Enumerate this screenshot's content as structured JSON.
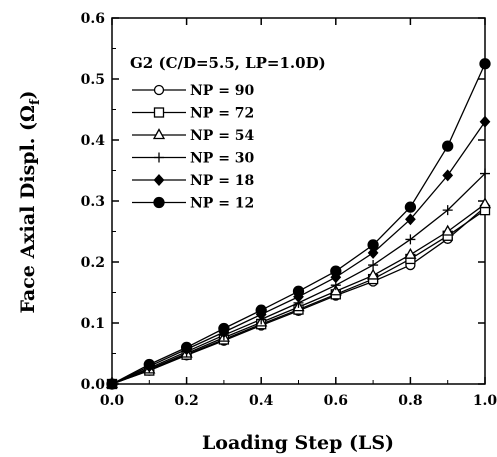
{
  "chart_data": {
    "type": "line",
    "xlabel": "Loading Step (LS)",
    "ylabel_prefix": "Face Axial Displ. (",
    "ylabel_symbol": "Ω",
    "ylabel_subscript": "f",
    "ylabel_suffix": ")",
    "xlim": [
      0,
      1
    ],
    "ylim": [
      0,
      0.6
    ],
    "x_ticks": [
      "0.0",
      "0.2",
      "0.4",
      "0.6",
      "0.8",
      "1.0"
    ],
    "y_ticks": [
      "0.0",
      "0.1",
      "0.2",
      "0.3",
      "0.4",
      "0.5",
      "0.6"
    ],
    "grid": false,
    "legend_title": "G2 (C/D=5.5, LP=1.0D)",
    "legend_position": "top-left",
    "x": [
      0.0,
      0.1,
      0.2,
      0.3,
      0.4,
      0.5,
      0.6,
      0.7,
      0.8,
      0.9,
      1.0
    ],
    "series": [
      {
        "name": "NP = 90",
        "marker": "circle-open",
        "values": [
          0.0,
          0.022,
          0.047,
          0.071,
          0.096,
          0.12,
          0.145,
          0.168,
          0.195,
          0.238,
          0.29
        ]
      },
      {
        "name": "NP = 72",
        "marker": "square-open",
        "values": [
          0.0,
          0.022,
          0.048,
          0.073,
          0.098,
          0.122,
          0.147,
          0.172,
          0.205,
          0.243,
          0.285
        ]
      },
      {
        "name": "NP = 54",
        "marker": "triangle-open",
        "values": [
          0.0,
          0.024,
          0.05,
          0.076,
          0.101,
          0.126,
          0.152,
          0.178,
          0.212,
          0.25,
          0.295
        ]
      },
      {
        "name": "NP = 30",
        "marker": "plus",
        "values": [
          0.0,
          0.026,
          0.053,
          0.08,
          0.106,
          0.133,
          0.162,
          0.195,
          0.237,
          0.285,
          0.345
        ]
      },
      {
        "name": "NP = 18",
        "marker": "diamond-filled",
        "values": [
          0.0,
          0.029,
          0.057,
          0.085,
          0.114,
          0.143,
          0.175,
          0.215,
          0.27,
          0.342,
          0.43
        ]
      },
      {
        "name": "NP = 12",
        "marker": "circle-filled",
        "values": [
          0.0,
          0.032,
          0.06,
          0.091,
          0.121,
          0.152,
          0.185,
          0.228,
          0.29,
          0.39,
          0.525
        ]
      }
    ]
  }
}
